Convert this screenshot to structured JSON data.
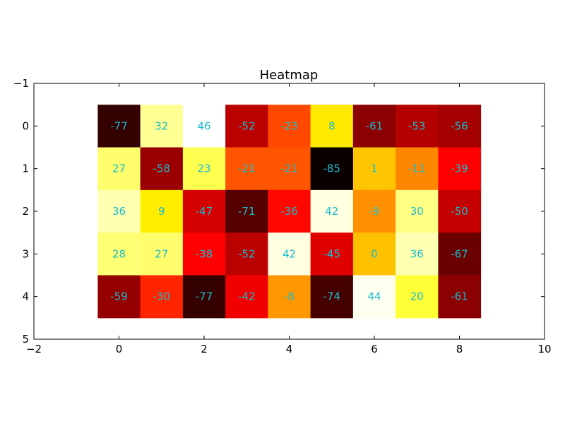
{
  "chart_data": {
    "type": "heatmap",
    "title": "Heatmap",
    "colormap": "hot",
    "label_color": "#17becf",
    "value_range": [
      -85,
      46
    ],
    "xlim": [
      -2,
      10
    ],
    "ylim": [
      5,
      -1
    ],
    "x_ticks": [
      "−2",
      "0",
      "2",
      "4",
      "6",
      "8",
      "10"
    ],
    "x_tick_values": [
      -2,
      0,
      2,
      4,
      6,
      8,
      10
    ],
    "y_ticks": [
      "−1",
      "0",
      "1",
      "2",
      "3",
      "4",
      "5"
    ],
    "y_tick_values": [
      -1,
      0,
      1,
      2,
      3,
      4,
      5
    ],
    "grid": false,
    "values": [
      [
        -77,
        32,
        46,
        -52,
        -23,
        8,
        -61,
        -53,
        -56
      ],
      [
        27,
        -58,
        23,
        -21,
        -21,
        -85,
        1,
        -11,
        -39
      ],
      [
        36,
        9,
        -47,
        -71,
        -36,
        42,
        -9,
        30,
        -50
      ],
      [
        28,
        27,
        -38,
        -52,
        42,
        -45,
        0,
        36,
        -67
      ],
      [
        -59,
        -30,
        -77,
        -42,
        -8,
        -74,
        44,
        20,
        -61
      ]
    ]
  }
}
